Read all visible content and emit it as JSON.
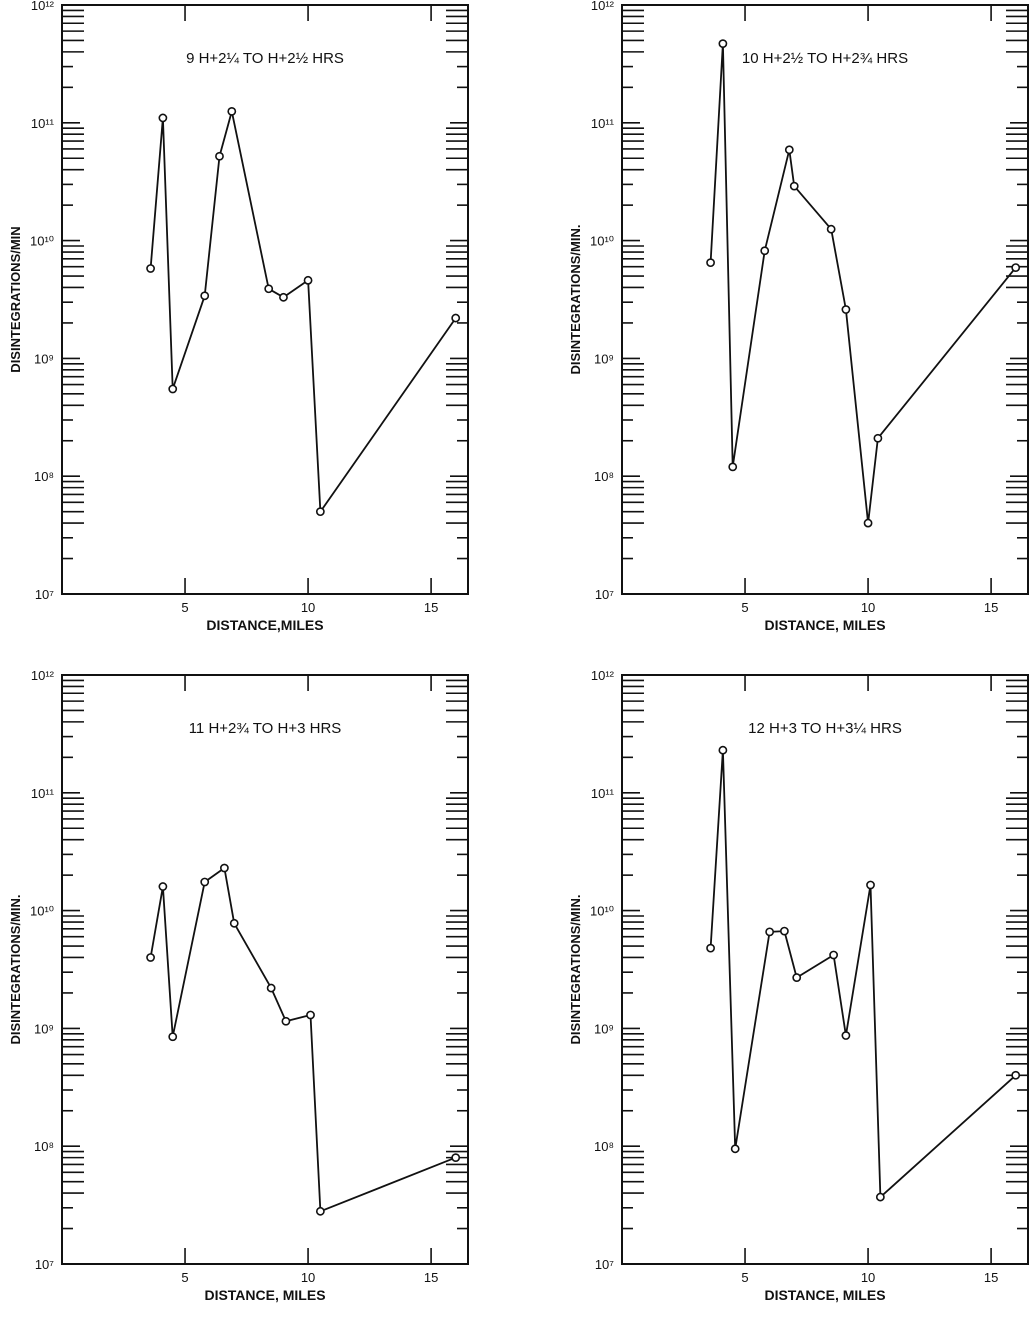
{
  "chart_data": [
    {
      "type": "line",
      "title": "9  H+2¼ TO H+2½ HRS",
      "xlabel": "DISTANCE,MILES",
      "ylabel": "DISINTEGRATIONS/MIN",
      "xlim": [
        0,
        16.5
      ],
      "x_ticks": [
        5,
        10,
        15
      ],
      "y_scale": "log",
      "ylim": [
        10000000,
        1000000000000
      ],
      "y_ticks": [
        "10¹²",
        "10¹¹",
        "10¹⁰",
        "10⁹",
        "10⁸",
        "10⁷"
      ],
      "x": [
        3.6,
        4.1,
        4.5,
        5.8,
        6.4,
        6.9,
        8.4,
        9.0,
        10.0,
        10.5,
        16.0
      ],
      "y": [
        5800000000,
        110000000000,
        550000000,
        3400000000,
        52000000000,
        125000000000,
        3900000000,
        3300000000,
        4600000000,
        50000000,
        2200000000
      ]
    },
    {
      "type": "line",
      "title": "10  H+2½ TO H+2¾ HRS",
      "xlabel": "DISTANCE, MILES",
      "ylabel": "DISINTEGRATIONS/MIN.",
      "xlim": [
        0,
        16.5
      ],
      "x_ticks": [
        5,
        10,
        15
      ],
      "y_scale": "log",
      "ylim": [
        10000000,
        1000000000000
      ],
      "y_ticks": [
        "10¹²",
        "10¹¹",
        "10¹⁰",
        "10⁹",
        "10⁸",
        "10⁷"
      ],
      "x": [
        3.6,
        4.1,
        4.5,
        5.8,
        6.8,
        7.0,
        8.5,
        9.1,
        10.0,
        10.4,
        16.0
      ],
      "y": [
        6500000000,
        470000000000,
        120000000,
        8200000000,
        59000000000,
        29000000000,
        12500000000,
        2600000000,
        40000000,
        210000000,
        5900000000
      ]
    },
    {
      "type": "line",
      "title": "11  H+2¾ TO H+3 HRS",
      "xlabel": "DISTANCE, MILES",
      "ylabel": "DISINTEGRATIONS/MIN.",
      "xlim": [
        0,
        16.5
      ],
      "x_ticks": [
        5,
        10,
        15
      ],
      "y_scale": "log",
      "ylim": [
        10000000,
        1000000000000
      ],
      "y_ticks": [
        "10¹²",
        "10¹¹",
        "10¹⁰",
        "10⁹",
        "10⁸",
        "10⁷"
      ],
      "x": [
        3.6,
        4.1,
        4.5,
        5.8,
        6.6,
        7.0,
        8.5,
        9.1,
        10.1,
        10.5,
        16.0
      ],
      "y": [
        4000000000,
        16000000000,
        850000000,
        17500000000,
        23000000000,
        7800000000,
        2200000000,
        1150000000,
        1300000000,
        28000000,
        80000000
      ]
    },
    {
      "type": "line",
      "title": "12  H+3 TO H+3¼ HRS",
      "xlabel": "DISTANCE, MILES",
      "ylabel": "DISINTEGRATIONS/MIN.",
      "xlim": [
        0,
        16.5
      ],
      "x_ticks": [
        5,
        10,
        15
      ],
      "y_scale": "log",
      "ylim": [
        10000000,
        1000000000000
      ],
      "y_ticks": [
        "10¹²",
        "10¹¹",
        "10¹⁰",
        "10⁹",
        "10⁸",
        "10⁷"
      ],
      "x": [
        3.6,
        4.1,
        4.6,
        6.0,
        6.6,
        7.1,
        8.6,
        9.1,
        10.1,
        10.5,
        16.0
      ],
      "y": [
        4800000000,
        230000000000,
        95000000,
        6600000000,
        6700000000,
        2700000000,
        4200000000,
        870000000,
        16500000000,
        37000000,
        400000000
      ]
    }
  ]
}
